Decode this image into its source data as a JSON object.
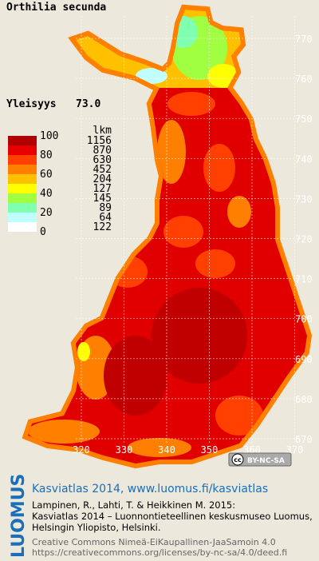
{
  "title": "Orthilia secunda",
  "prevalence_label": "Yleisyys",
  "prevalence": "73.0",
  "legend": {
    "scale": [
      "100",
      "80",
      "60",
      "40",
      "20",
      "0"
    ],
    "count_header": "lkm",
    "counts": [
      "1156",
      "870",
      "630",
      "452",
      "204",
      "127",
      "145",
      "89",
      "64",
      "122"
    ],
    "colors": [
      "#b00000",
      "#e80000",
      "#ff4000",
      "#ff8000",
      "#ffc000",
      "#ffff00",
      "#a0ff40",
      "#80ffb0",
      "#c0ffff",
      "#ffffff"
    ]
  },
  "map": {
    "y_labels": [
      "770",
      "760",
      "750",
      "740",
      "730",
      "720",
      "710",
      "700",
      "690",
      "680",
      "670"
    ],
    "x_labels": [
      "320",
      "330",
      "340",
      "350",
      "360",
      "370"
    ]
  },
  "license_badge": {
    "icon": "cc",
    "label": "BY-NC-SA"
  },
  "footer": {
    "logo": "LUOMUS",
    "link": "Kasviatlas 2014, www.luomus.fi/kasviatlas",
    "citation": [
      "Lampinen, R., Lahti, T. & Heikkinen M. 2015:",
      "Kasviatlas 2014 – Luonnontieteellinen keskusmuseo Luomus,",
      "Helsingin Yliopisto, Helsinki."
    ],
    "license": [
      "Creative Commons Nimeä-EiKaupallinen-JaaSamoin 4.0",
      "https://creativecommons.org/licenses/by-nc-sa/4.0/deed.fi"
    ]
  }
}
